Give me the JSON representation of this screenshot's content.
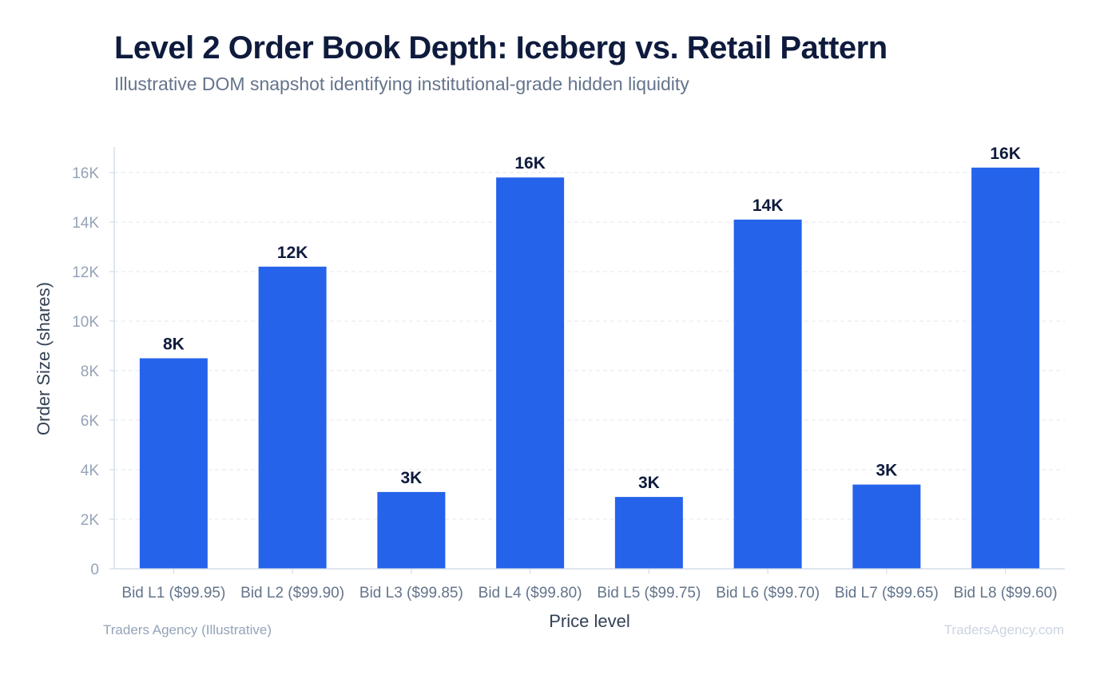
{
  "header": {
    "title": "Level 2 Order Book Depth: Iceberg vs. Retail Pattern",
    "subtitle": "Illustrative DOM snapshot identifying institutional-grade hidden liquidity"
  },
  "footer": {
    "source": "Traders Agency (Illustrative)",
    "watermark": "TradersAgency.com"
  },
  "colors": {
    "bar": "#2563eb",
    "grid": "#e5e7eb",
    "axis": "#cbd5e1"
  },
  "chart_data": {
    "type": "bar",
    "xlabel": "Price level",
    "ylabel": "Order Size (shares)",
    "ylim": [
      0,
      17000
    ],
    "yticks": [
      0,
      2000,
      4000,
      6000,
      8000,
      10000,
      12000,
      14000,
      16000
    ],
    "ytick_labels": [
      "0",
      "2K",
      "4K",
      "6K",
      "8K",
      "10K",
      "12K",
      "14K",
      "16K"
    ],
    "grid": true,
    "categories": [
      "Bid L1 ($99.95)",
      "Bid L2 ($99.90)",
      "Bid L3 ($99.85)",
      "Bid L4 ($99.80)",
      "Bid L5 ($99.75)",
      "Bid L6 ($99.70)",
      "Bid L7 ($99.65)",
      "Bid L8 ($99.60)"
    ],
    "values": [
      8500,
      12200,
      3100,
      15800,
      2900,
      14100,
      3400,
      16200
    ],
    "data_labels": [
      "8K",
      "12K",
      "3K",
      "16K",
      "3K",
      "14K",
      "3K",
      "16K"
    ]
  }
}
